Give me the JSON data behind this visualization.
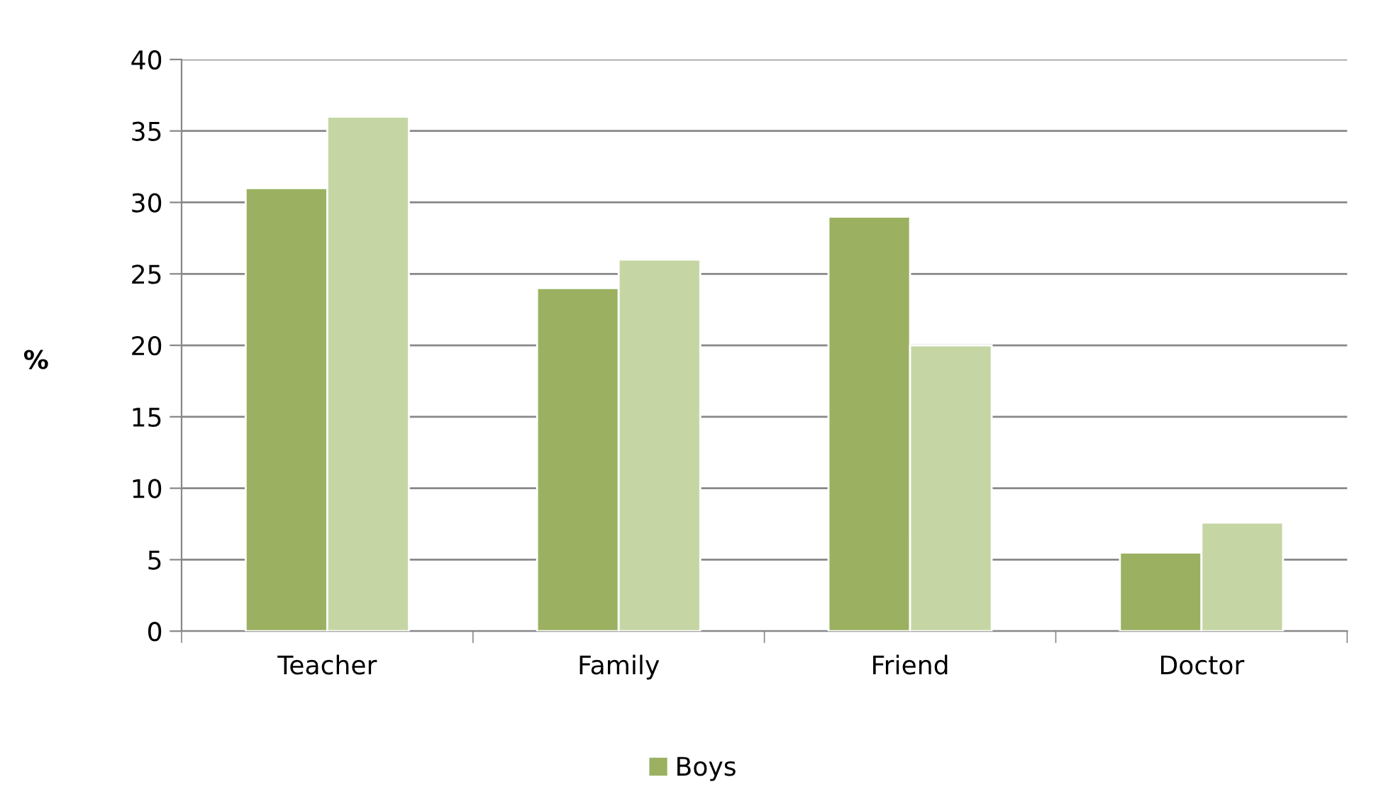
{
  "chart_data": {
    "type": "bar",
    "ylabel": "%",
    "categories": [
      "Teacher",
      "Family",
      "Friend",
      "Doctor"
    ],
    "series": [
      {
        "name": "Boys",
        "color": "#9bb161",
        "values": [
          31,
          24,
          29,
          5.5
        ]
      },
      {
        "color": "#c5d6a4",
        "values": [
          36,
          26,
          20,
          7.6
        ]
      }
    ],
    "ylim": [
      0,
      40
    ],
    "yticks": [
      0,
      5,
      10,
      15,
      20,
      25,
      30,
      35,
      40
    ],
    "grid": "y",
    "legend": "bottom"
  }
}
